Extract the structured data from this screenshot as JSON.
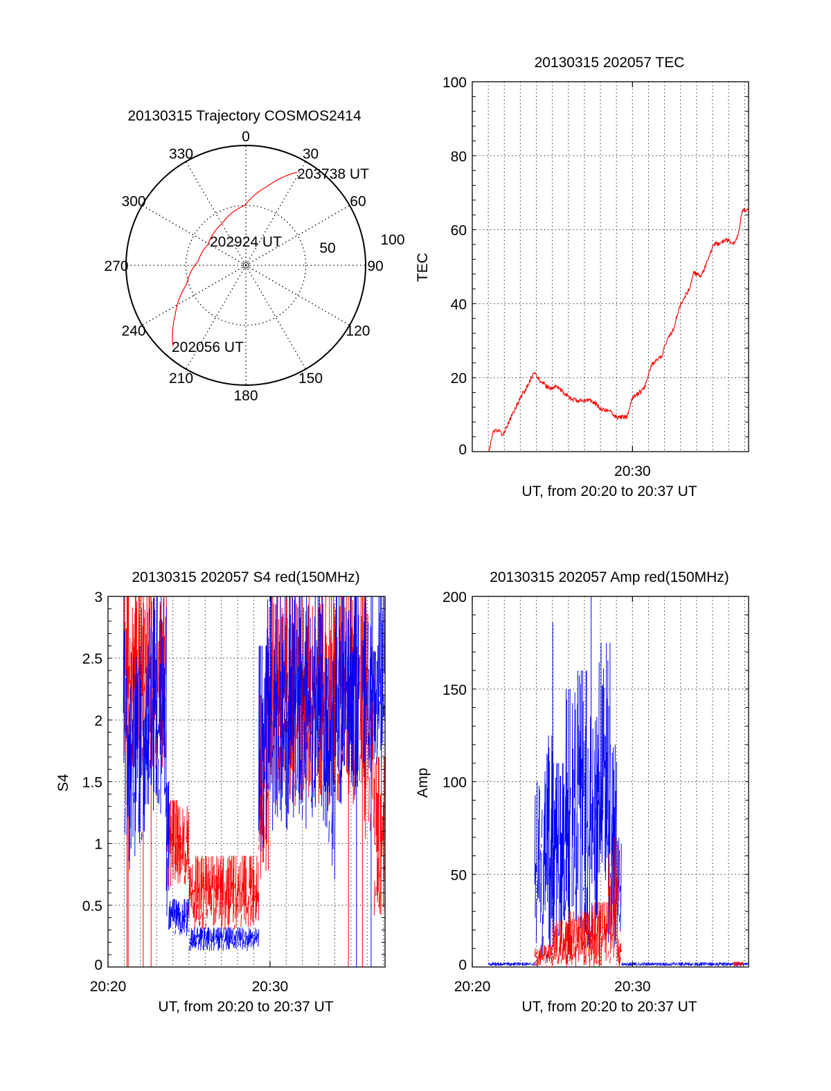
{
  "colors": {
    "red": "#ff0000",
    "blue": "#0000ff",
    "axis": "#000000"
  },
  "chart_data": [
    {
      "type": "polar",
      "title": "20130315 Trajectory COSMOS2414",
      "angle_labels": [
        "0",
        "30",
        "60",
        "90",
        "120",
        "150",
        "180",
        "210",
        "240",
        "270",
        "300",
        "330"
      ],
      "radius_labels": [
        "100",
        "50"
      ],
      "rlim": [
        0,
        100
      ],
      "series": [
        {
          "name": "trajectory",
          "color": "red",
          "points_az_r": [
            [
              222,
              91
            ],
            [
              235,
              72
            ],
            [
              252,
              52
            ],
            [
              275,
              40
            ],
            [
              299,
              36
            ],
            [
              330,
              40
            ],
            [
              359,
              50
            ],
            [
              15,
              68
            ],
            [
              29,
              89
            ]
          ]
        }
      ],
      "annotations": [
        "202056 UT",
        "202924 UT",
        "203738 UT"
      ]
    },
    {
      "type": "line",
      "title": "20130315 202057 TEC",
      "xlabel": "UT, from 20:20 to 20:37 UT",
      "ylabel": "TEC",
      "x_unit": "minutes after 20:20",
      "xlim": [
        0,
        17.25
      ],
      "ylim": [
        0,
        100
      ],
      "yticks": [
        "0",
        "20",
        "40",
        "60",
        "80",
        "100"
      ],
      "xtick_labels": [
        {
          "x": 10,
          "label": "20:30"
        }
      ],
      "grid": true,
      "series": [
        {
          "name": "TEC",
          "color": "red",
          "points": [
            [
              1.05,
              0
            ],
            [
              1.27,
              5
            ],
            [
              1.6,
              5.8
            ],
            [
              1.91,
              4.6
            ],
            [
              2.48,
              9.8
            ],
            [
              3.05,
              15
            ],
            [
              3.5,
              18
            ],
            [
              3.83,
              21.2
            ],
            [
              4.3,
              19
            ],
            [
              4.76,
              17.2
            ],
            [
              5.2,
              17.5
            ],
            [
              5.61,
              16.4
            ],
            [
              6.18,
              14.2
            ],
            [
              6.8,
              13.6
            ],
            [
              7.1,
              14.1
            ],
            [
              7.46,
              13.9
            ],
            [
              8.03,
              11.6
            ],
            [
              8.6,
              10.9
            ],
            [
              9.03,
              9.2
            ],
            [
              9.67,
              9.4
            ],
            [
              9.96,
              14.2
            ],
            [
              10.4,
              15.8
            ],
            [
              10.74,
              17.2
            ],
            [
              11.17,
              23.4
            ],
            [
              11.81,
              25.6
            ],
            [
              12.17,
              30.4
            ],
            [
              12.59,
              33.4
            ],
            [
              12.95,
              39.3
            ],
            [
              13.6,
              44.4
            ],
            [
              13.8,
              48.5
            ],
            [
              14.3,
              47.4
            ],
            [
              15.08,
              55.9
            ],
            [
              15.5,
              56.5
            ],
            [
              15.87,
              57.3
            ],
            [
              16.3,
              55.9
            ],
            [
              16.6,
              58.5
            ],
            [
              16.86,
              65.1
            ],
            [
              17.25,
              65.8
            ]
          ]
        }
      ]
    },
    {
      "type": "line",
      "title": "20130315 202057 S4 red(150MHz)",
      "xlabel": "UT, from 20:20 to 20:37 UT",
      "ylabel": "S4",
      "x_unit": "minutes after 20:20",
      "xlim": [
        0,
        17.1
      ],
      "ylim": [
        0,
        3
      ],
      "yticks": [
        "0",
        "0.5",
        "1",
        "1.5",
        "2",
        "2.5",
        "3"
      ],
      "xtick_labels": [
        {
          "x": 0,
          "label": "20:20"
        },
        {
          "x": 10,
          "label": "20:30"
        }
      ],
      "grid": true,
      "series": [
        {
          "name": "S4 red",
          "color": "red",
          "envelope_t0_t1_lo_hi": [
            [
              1.0,
              3.6,
              1.6,
              3
            ],
            [
              3.6,
              5.0,
              0.65,
              1.35
            ],
            [
              5.0,
              9.3,
              0.3,
              0.9
            ],
            [
              9.3,
              9.9,
              0.7,
              2.2
            ],
            [
              9.9,
              15.8,
              1.3,
              3
            ],
            [
              15.8,
              16.4,
              1.0,
              3
            ],
            [
              16.4,
              17.1,
              0.4,
              1.7
            ]
          ],
          "dropouts_to_zero": [
            1.17,
            1.25,
            2.17,
            2.66,
            14.84,
            15.7
          ]
        },
        {
          "name": "S4 blue",
          "color": "blue",
          "envelope_t0_t1_lo_hi": [
            [
              0.95,
              1.3,
              1.0,
              3
            ],
            [
              1.3,
              1.7,
              0.7,
              2.5
            ],
            [
              1.7,
              2.5,
              1.0,
              2.6
            ],
            [
              2.5,
              3.6,
              1.2,
              3
            ],
            [
              3.6,
              3.75,
              0.3,
              1.5
            ],
            [
              3.75,
              5.0,
              0.25,
              0.55
            ],
            [
              5.0,
              9.3,
              0.13,
              0.32
            ],
            [
              9.3,
              9.8,
              0.9,
              2.6
            ],
            [
              9.8,
              13.3,
              1.1,
              3
            ],
            [
              13.3,
              14.0,
              0.7,
              2.5
            ],
            [
              14.0,
              15.5,
              1.3,
              3
            ],
            [
              15.7,
              17.1,
              1.5,
              3
            ]
          ],
          "dropouts_to_zero": [
            15.34,
            16.24
          ]
        }
      ]
    },
    {
      "type": "line",
      "title": "20130315 202057 Amp red(150MHz)",
      "xlabel": "UT, from 20:20 to 20:37 UT",
      "ylabel": "Amp",
      "x_unit": "minutes after 20:20",
      "xlim": [
        0,
        17.25
      ],
      "ylim": [
        0,
        200
      ],
      "yticks": [
        "0",
        "50",
        "100",
        "150",
        "200"
      ],
      "xtick_labels": [
        {
          "x": 0,
          "label": "20:20"
        },
        {
          "x": 10,
          "label": "20:30"
        }
      ],
      "grid": true,
      "series": [
        {
          "name": "Amp blue",
          "color": "blue",
          "envelope_t0_t1_lo_hi": [
            [
              1.0,
              3.9,
              0.5,
              2.5
            ],
            [
              3.9,
              4.3,
              1,
              100
            ],
            [
              4.3,
              5.0,
              1,
              125
            ],
            [
              5.0,
              5.8,
              2,
              110
            ],
            [
              5.8,
              6.5,
              5,
              150
            ],
            [
              6.5,
              7.2,
              10,
              160
            ],
            [
              7.2,
              7.8,
              10,
              135
            ],
            [
              7.8,
              8.5,
              20,
              175
            ],
            [
              8.5,
              9.0,
              10,
              120
            ],
            [
              9.0,
              9.3,
              5,
              70
            ],
            [
              9.3,
              17.25,
              0.5,
              2.5
            ]
          ],
          "peaks": [
            [
              5.03,
              186
            ],
            [
              7.42,
              200
            ],
            [
              8.6,
              175
            ]
          ]
        },
        {
          "name": "Amp red",
          "color": "red",
          "envelope_t0_t1_lo_hi": [
            [
              3.9,
              5.0,
              0,
              12
            ],
            [
              5.0,
              6.0,
              0,
              25
            ],
            [
              6.0,
              7.5,
              0,
              30
            ],
            [
              7.5,
              8.5,
              0,
              35
            ],
            [
              8.5,
              9.1,
              0,
              70
            ],
            [
              9.1,
              9.3,
              0,
              15
            ],
            [
              16.3,
              16.9,
              0,
              3
            ]
          ],
          "peaks": []
        }
      ]
    }
  ]
}
